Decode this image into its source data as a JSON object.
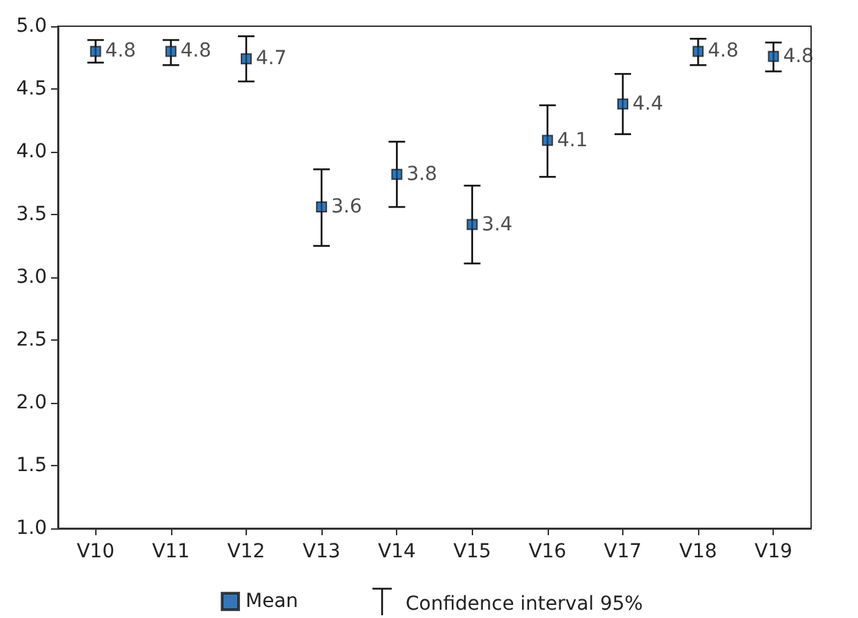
{
  "chart_data": {
    "type": "scatter",
    "categories": [
      "V10",
      "V11",
      "V12",
      "V13",
      "V14",
      "V15",
      "V16",
      "V17",
      "V18",
      "V19"
    ],
    "series": [
      {
        "name": "Mean",
        "color": "#0055a4",
        "values": [
          4.8,
          4.8,
          4.74,
          3.56,
          3.82,
          3.42,
          4.09,
          4.38,
          4.8,
          4.76
        ],
        "errors": [
          [
            4.71,
            4.89
          ],
          [
            4.69,
            4.89
          ],
          [
            4.56,
            4.92
          ],
          [
            3.25,
            3.86
          ],
          [
            3.56,
            4.08
          ],
          [
            3.11,
            3.73
          ],
          [
            3.8,
            4.37
          ],
          [
            4.14,
            4.62
          ],
          [
            4.69,
            4.9
          ],
          [
            4.64,
            4.87
          ]
        ],
        "value_labels": [
          "4.8",
          "4.8",
          "4.7",
          "3.6",
          "3.8",
          "3.4",
          "4.1",
          "4.4",
          "4.8",
          "4.8"
        ]
      }
    ],
    "annotations": [
      "Confidence interval 95%"
    ],
    "ylim": [
      1,
      5
    ],
    "yticks": [
      {
        "value": 1,
        "label": "1.0"
      },
      {
        "value": 1.5,
        "label": "1.5"
      },
      {
        "value": 2,
        "label": "2.0"
      },
      {
        "value": 2.5,
        "label": "2.5"
      },
      {
        "value": 3,
        "label": "3.0"
      },
      {
        "value": 3.5,
        "label": "3.5"
      },
      {
        "value": 4,
        "label": "4.0"
      },
      {
        "value": 4.5,
        "label": "4.5"
      },
      {
        "value": 5,
        "label": "5.0"
      }
    ],
    "grid": false,
    "legend": "bottom",
    "marker": "square"
  }
}
